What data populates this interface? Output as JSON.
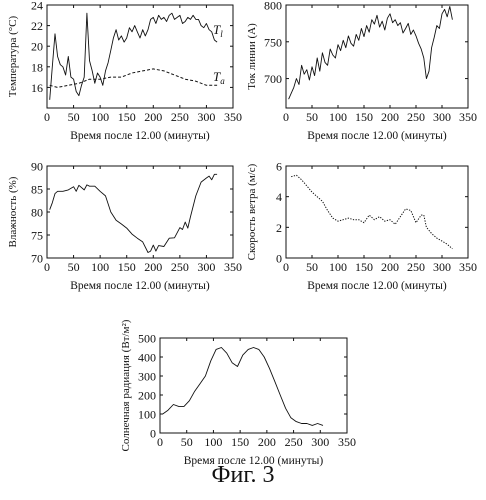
{
  "figure_caption": "Фиг. 3",
  "chart_data": [
    {
      "type": "line",
      "xlabel": "Время после 12.00 (минуты)",
      "ylabel": "Температура (°C)",
      "xlim": [
        0,
        350
      ],
      "ylim": [
        14,
        24
      ],
      "xticks": [
        0,
        50,
        100,
        150,
        200,
        250,
        300,
        350
      ],
      "yticks": [
        16,
        18,
        20,
        22,
        24
      ],
      "annotations": [
        {
          "label": "T",
          "sub": "l",
          "x": 318,
          "y": 21.2
        },
        {
          "label": "T",
          "sub": "a",
          "x": 318,
          "y": 16.6
        }
      ],
      "series": [
        {
          "style": "solid",
          "x": [
            5,
            10,
            15,
            20,
            25,
            30,
            35,
            40,
            45,
            50,
            55,
            60,
            65,
            70,
            75,
            80,
            85,
            90,
            95,
            100,
            105,
            110,
            115,
            120,
            125,
            130,
            135,
            140,
            145,
            150,
            155,
            160,
            165,
            170,
            175,
            180,
            185,
            190,
            195,
            200,
            205,
            210,
            215,
            220,
            225,
            230,
            235,
            240,
            245,
            250,
            255,
            260,
            265,
            270,
            275,
            280,
            285,
            290,
            295,
            300,
            305,
            310,
            315,
            320
          ],
          "y": [
            14.8,
            18,
            21.2,
            19,
            18.2,
            18,
            17.2,
            19,
            17,
            16.8,
            15.6,
            15.2,
            16.2,
            17,
            23.2,
            18.6,
            17.6,
            16.4,
            17.4,
            17,
            16.2,
            17.6,
            18.4,
            19.6,
            20.8,
            21.6,
            20.6,
            21,
            20.4,
            20.8,
            21.8,
            21.4,
            22,
            21.4,
            20.8,
            21.6,
            21,
            21.6,
            22.6,
            22.8,
            22.2,
            23,
            22.6,
            22.8,
            22.4,
            23,
            23.2,
            22.6,
            22.8,
            23,
            22.2,
            22.4,
            22.8,
            22.6,
            23,
            22.6,
            22.6,
            22,
            21.8,
            22.2,
            21.6,
            21.4,
            20.6,
            20.4
          ]
        },
        {
          "style": "dashed",
          "x": [
            5,
            20,
            40,
            60,
            80,
            100,
            120,
            140,
            160,
            180,
            200,
            220,
            240,
            260,
            280,
            300,
            320
          ],
          "y": [
            16.2,
            16,
            16.2,
            16.4,
            16.8,
            16.8,
            17,
            17,
            17.4,
            17.6,
            17.8,
            17.6,
            17.2,
            16.8,
            16.6,
            16.2,
            16.2
          ]
        }
      ]
    },
    {
      "type": "line",
      "xlabel": "Время после 12.00 (минуты)",
      "ylabel": "Ток линии (А)",
      "xlim": [
        0,
        350
      ],
      "ylim": [
        660,
        800
      ],
      "xticks": [
        0,
        50,
        100,
        150,
        200,
        250,
        300,
        350
      ],
      "yticks": [
        700,
        750,
        800
      ],
      "series": [
        {
          "style": "solid",
          "x": [
            5,
            10,
            15,
            20,
            25,
            30,
            35,
            40,
            45,
            50,
            55,
            60,
            65,
            70,
            75,
            80,
            85,
            90,
            95,
            100,
            105,
            110,
            115,
            120,
            125,
            130,
            135,
            140,
            145,
            150,
            155,
            160,
            165,
            170,
            175,
            180,
            185,
            190,
            195,
            200,
            205,
            210,
            215,
            220,
            225,
            230,
            235,
            240,
            245,
            250,
            255,
            260,
            265,
            270,
            275,
            280,
            285,
            290,
            295,
            300,
            305,
            310,
            315,
            320
          ],
          "y": [
            672,
            680,
            688,
            700,
            692,
            718,
            706,
            712,
            698,
            716,
            704,
            728,
            710,
            735,
            722,
            718,
            740,
            732,
            728,
            746,
            738,
            752,
            742,
            758,
            748,
            744,
            760,
            752,
            768,
            757,
            772,
            763,
            780,
            774,
            786,
            770,
            778,
            766,
            782,
            788,
            776,
            780,
            772,
            776,
            762,
            768,
            775,
            760,
            766,
            758,
            748,
            740,
            728,
            700,
            710,
            742,
            756,
            772,
            768,
            788,
            794,
            784,
            798,
            780
          ]
        }
      ]
    },
    {
      "type": "line",
      "xlabel": "Время после 12.00 (минуты)",
      "ylabel": "Влажность (%)",
      "xlim": [
        0,
        350
      ],
      "ylim": [
        70,
        90
      ],
      "xticks": [
        0,
        50,
        100,
        150,
        200,
        250,
        300,
        350
      ],
      "yticks": [
        70,
        75,
        80,
        85,
        90
      ],
      "series": [
        {
          "style": "solid",
          "x": [
            5,
            10,
            15,
            20,
            30,
            40,
            50,
            55,
            60,
            70,
            75,
            80,
            90,
            100,
            110,
            120,
            130,
            140,
            150,
            160,
            170,
            180,
            190,
            195,
            200,
            205,
            210,
            220,
            230,
            240,
            250,
            255,
            260,
            265,
            270,
            280,
            290,
            300,
            305,
            310,
            315,
            320
          ],
          "y": [
            80.5,
            82,
            84,
            84.5,
            84.5,
            84.8,
            85.5,
            84.5,
            85.8,
            84.8,
            85.9,
            85.6,
            85.6,
            84.5,
            83.5,
            80,
            78.2,
            77.4,
            76.5,
            75.2,
            74.3,
            73.5,
            71.2,
            71.5,
            72.8,
            71.5,
            72.7,
            72.5,
            74.3,
            74.4,
            76.6,
            76.2,
            77.8,
            76.5,
            79,
            83.5,
            86.5,
            87.4,
            87.8,
            87,
            88.2,
            88.2
          ]
        }
      ]
    },
    {
      "type": "line",
      "xlabel": "Время после 12.00 (минуты)",
      "ylabel": "Скорость ветра (м/с)",
      "xlim": [
        0,
        350
      ],
      "ylim": [
        0,
        6
      ],
      "xticks": [
        0,
        50,
        100,
        150,
        200,
        250,
        300,
        350
      ],
      "yticks": [
        0,
        2,
        4,
        6
      ],
      "series": [
        {
          "style": "dotted",
          "x": [
            10,
            20,
            30,
            40,
            50,
            60,
            70,
            80,
            90,
            100,
            110,
            120,
            130,
            140,
            150,
            160,
            170,
            180,
            190,
            200,
            210,
            220,
            230,
            240,
            250,
            260,
            265,
            270,
            280,
            290,
            300,
            310,
            320
          ],
          "y": [
            5.3,
            5.4,
            5.1,
            4.7,
            4.3,
            4,
            3.7,
            3.1,
            2.6,
            2.4,
            2.5,
            2.6,
            2.5,
            2.5,
            2.3,
            2.8,
            2.5,
            2.7,
            2.4,
            2.5,
            2.2,
            2.7,
            3.2,
            3.1,
            2.3,
            2.8,
            2.8,
            2,
            1.6,
            1.3,
            1.1,
            0.9,
            0.6
          ]
        }
      ]
    },
    {
      "type": "line",
      "xlabel": "Время после 12.00 (минуты)",
      "ylabel": "Солнечная радиация (Вт/м²)",
      "xlim": [
        0,
        350
      ],
      "ylim": [
        0,
        500
      ],
      "xticks": [
        0,
        50,
        100,
        150,
        200,
        250,
        300,
        350
      ],
      "yticks": [
        0,
        100,
        200,
        300,
        400,
        500
      ],
      "series": [
        {
          "style": "solid",
          "x": [
            5,
            15,
            25,
            35,
            45,
            55,
            65,
            75,
            85,
            95,
            105,
            115,
            125,
            135,
            145,
            155,
            165,
            175,
            185,
            195,
            205,
            215,
            225,
            235,
            245,
            255,
            265,
            275,
            285,
            295,
            305
          ],
          "y": [
            100,
            120,
            150,
            140,
            140,
            170,
            220,
            260,
            300,
            380,
            440,
            450,
            420,
            370,
            350,
            410,
            440,
            450,
            440,
            400,
            340,
            270,
            200,
            130,
            80,
            60,
            50,
            50,
            40,
            50,
            40
          ]
        }
      ]
    }
  ]
}
